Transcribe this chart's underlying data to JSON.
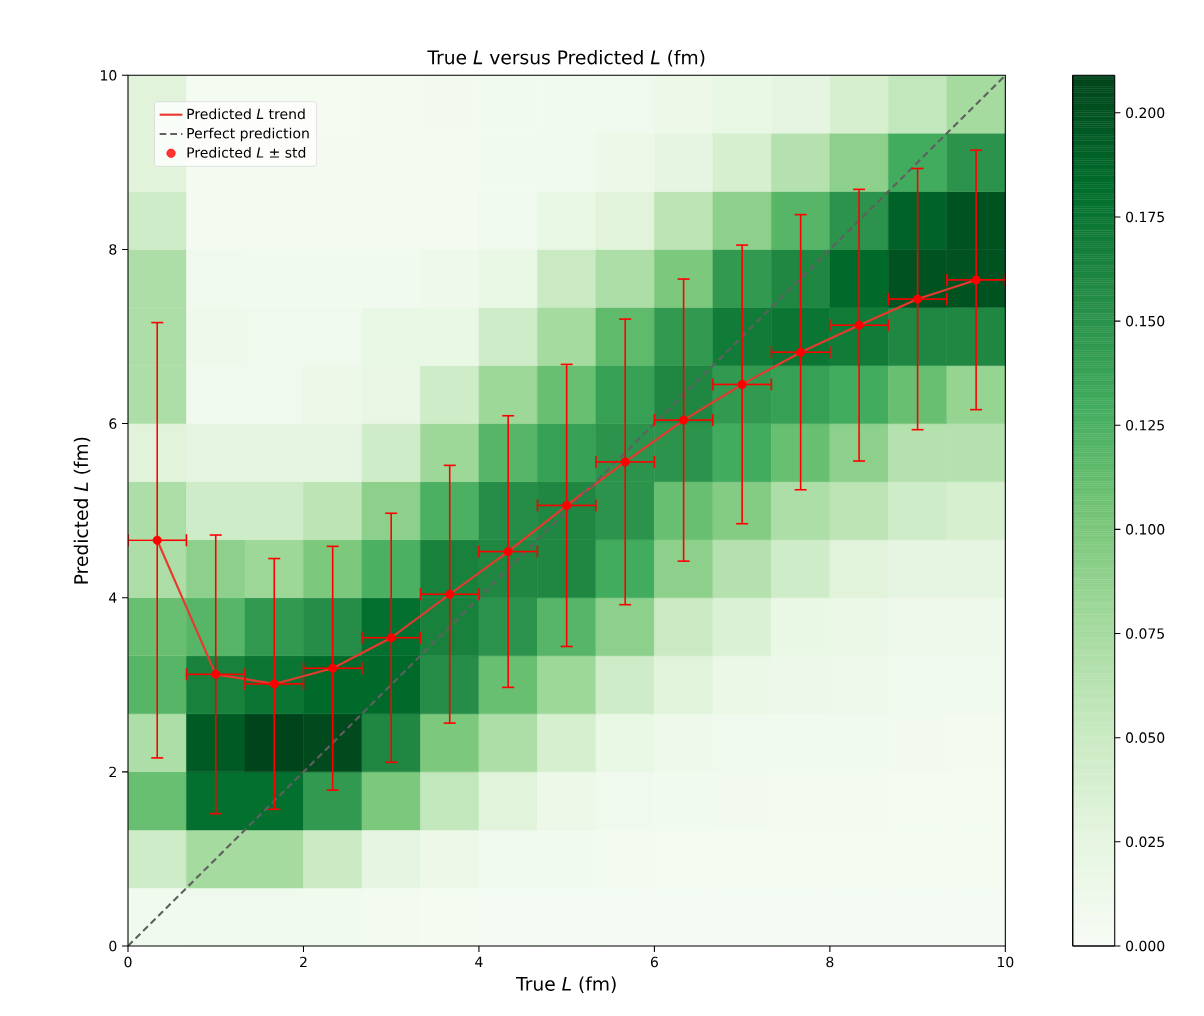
{
  "chart_data": {
    "type": "heatmap",
    "title": "True *L* versus Predicted *L* (fm)",
    "xlabel": "True *L* (fm)",
    "ylabel": "Predicted *L* (fm)",
    "xlim": [
      0,
      10
    ],
    "ylim": [
      0,
      10
    ],
    "xticks": [
      0,
      2,
      4,
      6,
      8,
      10
    ],
    "yticks": [
      0,
      2,
      4,
      6,
      8,
      10
    ],
    "clim": [
      0,
      0.209
    ],
    "cticks": [
      {
        "value": 0,
        "label": "0.000"
      },
      {
        "value": 0.025,
        "label": "0.025"
      },
      {
        "value": 0.05,
        "label": "0.050"
      },
      {
        "value": 0.075,
        "label": "0.075"
      },
      {
        "value": 0.1,
        "label": "0.100"
      },
      {
        "value": 0.125,
        "label": "0.125"
      },
      {
        "value": 0.15,
        "label": "0.150"
      },
      {
        "value": 0.175,
        "label": "0.175"
      },
      {
        "value": 0.2,
        "label": "0.200"
      }
    ],
    "cells": [
      [
        0.03,
        0.005,
        0.005,
        0.005,
        0.006,
        0.007,
        0.008,
        0.008,
        0.01,
        0.015,
        0.02,
        0.025,
        0.04,
        0.055,
        0.075
      ],
      [
        0.03,
        0.006,
        0.006,
        0.006,
        0.006,
        0.006,
        0.008,
        0.01,
        0.015,
        0.025,
        0.04,
        0.065,
        0.09,
        0.13,
        0.15
      ],
      [
        0.045,
        0.006,
        0.006,
        0.006,
        0.006,
        0.006,
        0.01,
        0.02,
        0.03,
        0.06,
        0.09,
        0.12,
        0.15,
        0.19,
        0.2
      ],
      [
        0.07,
        0.01,
        0.008,
        0.008,
        0.008,
        0.012,
        0.02,
        0.05,
        0.07,
        0.1,
        0.145,
        0.16,
        0.185,
        0.2,
        0.2
      ],
      [
        0.07,
        0.012,
        0.01,
        0.01,
        0.02,
        0.02,
        0.045,
        0.075,
        0.115,
        0.145,
        0.17,
        0.175,
        0.17,
        0.16,
        0.16
      ],
      [
        0.07,
        0.01,
        0.01,
        0.015,
        0.022,
        0.045,
        0.08,
        0.11,
        0.14,
        0.16,
        0.145,
        0.14,
        0.13,
        0.11,
        0.085
      ],
      [
        0.03,
        0.025,
        0.025,
        0.025,
        0.045,
        0.08,
        0.12,
        0.14,
        0.15,
        0.15,
        0.13,
        0.11,
        0.09,
        0.065,
        0.065
      ],
      [
        0.07,
        0.045,
        0.045,
        0.06,
        0.09,
        0.125,
        0.155,
        0.16,
        0.15,
        0.11,
        0.095,
        0.07,
        0.06,
        0.045,
        0.04
      ],
      [
        0.07,
        0.09,
        0.08,
        0.1,
        0.125,
        0.165,
        0.16,
        0.16,
        0.13,
        0.09,
        0.065,
        0.045,
        0.03,
        0.025,
        0.025
      ],
      [
        0.11,
        0.12,
        0.145,
        0.155,
        0.18,
        0.165,
        0.15,
        0.12,
        0.09,
        0.05,
        0.035,
        0.02,
        0.018,
        0.012,
        0.012
      ],
      [
        0.12,
        0.165,
        0.175,
        0.185,
        0.185,
        0.155,
        0.11,
        0.08,
        0.045,
        0.03,
        0.018,
        0.014,
        0.012,
        0.01,
        0.01
      ],
      [
        0.07,
        0.195,
        0.209,
        0.205,
        0.16,
        0.1,
        0.07,
        0.04,
        0.02,
        0.012,
        0.01,
        0.008,
        0.008,
        0.007,
        0.006
      ],
      [
        0.11,
        0.18,
        0.18,
        0.145,
        0.1,
        0.055,
        0.03,
        0.015,
        0.01,
        0.008,
        0.007,
        0.006,
        0.006,
        0.005,
        0.005
      ],
      [
        0.045,
        0.075,
        0.075,
        0.05,
        0.025,
        0.015,
        0.01,
        0.008,
        0.006,
        0.005,
        0.005,
        0.005,
        0.005,
        0.005,
        0.005
      ],
      [
        0.008,
        0.01,
        0.01,
        0.008,
        0.006,
        0.005,
        0.004,
        0.004,
        0.004,
        0.004,
        0.004,
        0.004,
        0.004,
        0.004,
        0.004
      ]
    ],
    "series": [
      {
        "name": "Predicted *L* trend",
        "type": "line",
        "marker": "none",
        "line_style": "solid",
        "color": "#e8392e",
        "x": [
          0.333,
          1,
          1.667,
          2.333,
          3,
          3.667,
          4.333,
          5,
          5.667,
          6.333,
          7,
          7.667,
          8.333,
          9,
          9.667
        ],
        "values": [
          4.66,
          3.12,
          3.01,
          3.19,
          3.54,
          4.04,
          4.53,
          5.06,
          5.56,
          6.04,
          6.45,
          6.82,
          7.13,
          7.43,
          7.65
        ]
      },
      {
        "name": "Perfect prediction",
        "type": "line",
        "marker": "none",
        "line_style": "dashed",
        "color": "#606060",
        "x": [
          0,
          10
        ],
        "values": [
          0,
          10
        ]
      },
      {
        "name": "Predicted *L* ± std",
        "type": "scatter",
        "marker": "circle",
        "color": "#ff0000",
        "x": [
          0.333,
          1,
          1.667,
          2.333,
          3,
          3.667,
          4.333,
          5,
          5.667,
          6.333,
          7,
          7.667,
          8.333,
          9,
          9.667
        ],
        "values": [
          4.66,
          3.12,
          3.01,
          3.19,
          3.54,
          4.04,
          4.53,
          5.06,
          5.56,
          6.04,
          6.45,
          6.82,
          7.13,
          7.43,
          7.65
        ],
        "errors": [
          2.5,
          1.6,
          1.44,
          1.4,
          1.43,
          1.48,
          1.56,
          1.62,
          1.64,
          1.62,
          1.6,
          1.58,
          1.56,
          1.5,
          1.49
        ],
        "xerrors": [
          0.333,
          0.333,
          0.333,
          0.333,
          0.333,
          0.333,
          0.333,
          0.333,
          0.333,
          0.333,
          0.333,
          0.333,
          0.333,
          0.333,
          0.333
        ]
      }
    ],
    "legend": "top left"
  }
}
